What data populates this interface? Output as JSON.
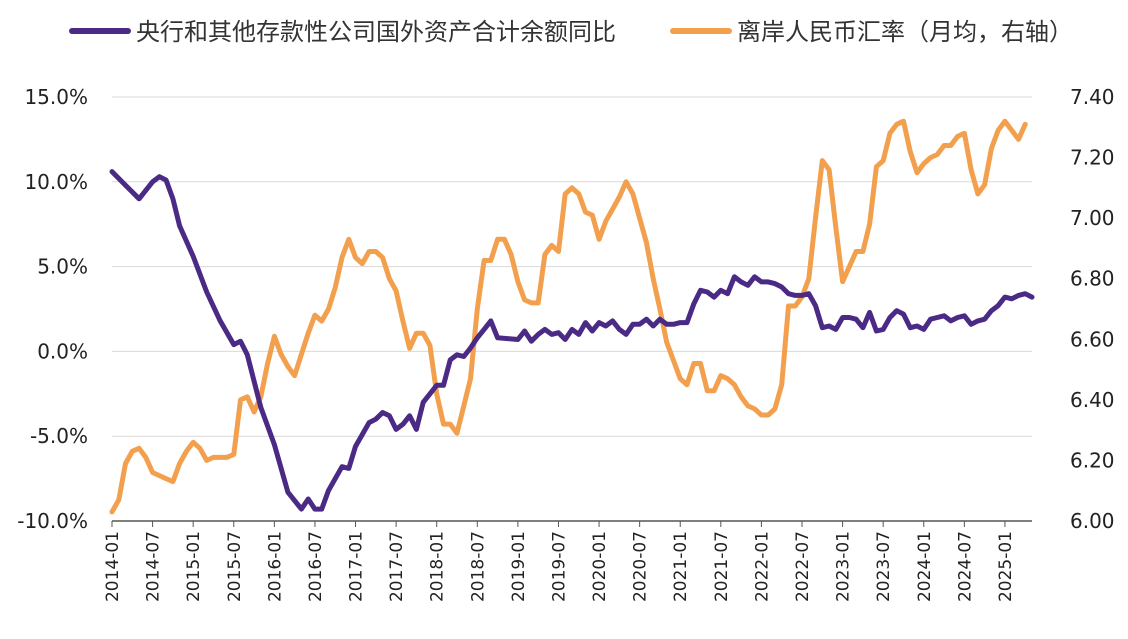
{
  "chart_data": {
    "type": "line",
    "dual_axis": true,
    "legend_position": "top",
    "grid": "horizontal",
    "colors": {
      "series1": "#4b2a86",
      "series2": "#f2a04e",
      "grid": "#d9d9d9",
      "axis": "#555555"
    },
    "y_left": {
      "ylim": [
        -10.0,
        15.0
      ],
      "ticks": [
        "-10.0%",
        "-5.0%",
        "0.0%",
        "5.0%",
        "10.0%",
        "15.0%"
      ]
    },
    "y_right": {
      "ylim": [
        6.0,
        7.4
      ],
      "ticks": [
        "6.00",
        "6.20",
        "6.40",
        "6.60",
        "6.80",
        "7.00",
        "7.20",
        "7.40"
      ]
    },
    "x_ticks": [
      "2014-01",
      "2014-07",
      "2015-01",
      "2015-07",
      "2016-01",
      "2016-07",
      "2017-01",
      "2017-07",
      "2018-01",
      "2018-07",
      "2019-01",
      "2019-07",
      "2020-01",
      "2020-07",
      "2021-01",
      "2021-07",
      "2022-01",
      "2022-07",
      "2023-01",
      "2023-07",
      "2024-01",
      "2024-07",
      "2025-01"
    ],
    "x_start": "2014-01",
    "x_end": "2025-05",
    "series": [
      {
        "name": "央行和其他存款性公司国外资产合计余额同比",
        "axis": "left",
        "points": [
          [
            "2014-01",
            10.6
          ],
          [
            "2014-03",
            9.8
          ],
          [
            "2014-05",
            9.0
          ],
          [
            "2014-07",
            10.0
          ],
          [
            "2014-08",
            10.3
          ],
          [
            "2014-09",
            10.1
          ],
          [
            "2014-10",
            9.0
          ],
          [
            "2014-11",
            7.4
          ],
          [
            "2015-01",
            5.6
          ],
          [
            "2015-03",
            3.5
          ],
          [
            "2015-05",
            1.8
          ],
          [
            "2015-07",
            0.4
          ],
          [
            "2015-08",
            0.6
          ],
          [
            "2015-09",
            -0.2
          ],
          [
            "2015-11",
            -3.3
          ],
          [
            "2016-01",
            -5.5
          ],
          [
            "2016-03",
            -8.3
          ],
          [
            "2016-05",
            -9.3
          ],
          [
            "2016-06",
            -8.7
          ],
          [
            "2016-07",
            -9.3
          ],
          [
            "2016-08",
            -9.3
          ],
          [
            "2016-09",
            -8.2
          ],
          [
            "2016-11",
            -6.8
          ],
          [
            "2016-12",
            -6.9
          ],
          [
            "2017-01",
            -5.6
          ],
          [
            "2017-03",
            -4.2
          ],
          [
            "2017-04",
            -4.0
          ],
          [
            "2017-05",
            -3.6
          ],
          [
            "2017-06",
            -3.8
          ],
          [
            "2017-07",
            -4.6
          ],
          [
            "2017-08",
            -4.3
          ],
          [
            "2017-09",
            -3.8
          ],
          [
            "2017-10",
            -4.6
          ],
          [
            "2017-11",
            -3.0
          ],
          [
            "2018-01",
            -2.0
          ],
          [
            "2018-02",
            -2.0
          ],
          [
            "2018-03",
            -0.5
          ],
          [
            "2018-04",
            -0.2
          ],
          [
            "2018-05",
            -0.3
          ],
          [
            "2018-06",
            0.2
          ],
          [
            "2018-07",
            0.8
          ],
          [
            "2018-08",
            1.3
          ],
          [
            "2018-09",
            1.8
          ],
          [
            "2018-10",
            0.8
          ],
          [
            "2019-01",
            0.7
          ],
          [
            "2019-02",
            1.2
          ],
          [
            "2019-03",
            0.6
          ],
          [
            "2019-04",
            1.0
          ],
          [
            "2019-05",
            1.3
          ],
          [
            "2019-06",
            1.0
          ],
          [
            "2019-07",
            1.1
          ],
          [
            "2019-08",
            0.7
          ],
          [
            "2019-09",
            1.3
          ],
          [
            "2019-10",
            1.0
          ],
          [
            "2019-11",
            1.7
          ],
          [
            "2019-12",
            1.2
          ],
          [
            "2020-01",
            1.7
          ],
          [
            "2020-02",
            1.5
          ],
          [
            "2020-03",
            1.8
          ],
          [
            "2020-04",
            1.3
          ],
          [
            "2020-05",
            1.0
          ],
          [
            "2020-06",
            1.6
          ],
          [
            "2020-07",
            1.6
          ],
          [
            "2020-08",
            1.9
          ],
          [
            "2020-09",
            1.5
          ],
          [
            "2020-10",
            1.9
          ],
          [
            "2020-11",
            1.6
          ],
          [
            "2020-12",
            1.6
          ],
          [
            "2021-01",
            1.7
          ],
          [
            "2021-02",
            1.7
          ],
          [
            "2021-03",
            2.8
          ],
          [
            "2021-04",
            3.6
          ],
          [
            "2021-05",
            3.5
          ],
          [
            "2021-06",
            3.2
          ],
          [
            "2021-07",
            3.6
          ],
          [
            "2021-08",
            3.4
          ],
          [
            "2021-09",
            4.4
          ],
          [
            "2021-10",
            4.1
          ],
          [
            "2021-11",
            3.9
          ],
          [
            "2021-12",
            4.4
          ],
          [
            "2022-01",
            4.1
          ],
          [
            "2022-02",
            4.1
          ],
          [
            "2022-03",
            4.0
          ],
          [
            "2022-04",
            3.8
          ],
          [
            "2022-05",
            3.4
          ],
          [
            "2022-06",
            3.3
          ],
          [
            "2022-07",
            3.3
          ],
          [
            "2022-08",
            3.4
          ],
          [
            "2022-09",
            2.7
          ],
          [
            "2022-10",
            1.4
          ],
          [
            "2022-11",
            1.5
          ],
          [
            "2022-12",
            1.3
          ],
          [
            "2023-01",
            2.0
          ],
          [
            "2023-02",
            2.0
          ],
          [
            "2023-03",
            1.9
          ],
          [
            "2023-04",
            1.4
          ],
          [
            "2023-05",
            2.3
          ],
          [
            "2023-06",
            1.2
          ],
          [
            "2023-07",
            1.3
          ],
          [
            "2023-08",
            2.0
          ],
          [
            "2023-09",
            2.4
          ],
          [
            "2023-10",
            2.2
          ],
          [
            "2023-11",
            1.4
          ],
          [
            "2023-12",
            1.5
          ],
          [
            "2024-01",
            1.3
          ],
          [
            "2024-02",
            1.9
          ],
          [
            "2024-03",
            2.0
          ],
          [
            "2024-04",
            2.1
          ],
          [
            "2024-05",
            1.8
          ],
          [
            "2024-06",
            2.0
          ],
          [
            "2024-07",
            2.1
          ],
          [
            "2024-08",
            1.6
          ],
          [
            "2024-09",
            1.8
          ],
          [
            "2024-10",
            1.9
          ],
          [
            "2024-11",
            2.4
          ],
          [
            "2024-12",
            2.7
          ],
          [
            "2025-01",
            3.2
          ],
          [
            "2025-02",
            3.1
          ],
          [
            "2025-03",
            3.3
          ],
          [
            "2025-04",
            3.4
          ],
          [
            "2025-05",
            3.2
          ]
        ]
      },
      {
        "name": "离岸人民币汇率（月均，右轴）",
        "axis": "right",
        "points": [
          [
            "2014-01",
            6.03
          ],
          [
            "2014-02",
            6.07
          ],
          [
            "2014-03",
            6.19
          ],
          [
            "2014-04",
            6.23
          ],
          [
            "2014-05",
            6.24
          ],
          [
            "2014-06",
            6.21
          ],
          [
            "2014-07",
            6.16
          ],
          [
            "2014-08",
            6.15
          ],
          [
            "2014-09",
            6.14
          ],
          [
            "2014-10",
            6.13
          ],
          [
            "2014-11",
            6.19
          ],
          [
            "2014-12",
            6.23
          ],
          [
            "2015-01",
            6.26
          ],
          [
            "2015-02",
            6.24
          ],
          [
            "2015-03",
            6.2
          ],
          [
            "2015-04",
            6.21
          ],
          [
            "2015-05",
            6.21
          ],
          [
            "2015-06",
            6.21
          ],
          [
            "2015-07",
            6.22
          ],
          [
            "2015-08",
            6.4
          ],
          [
            "2015-09",
            6.41
          ],
          [
            "2015-10",
            6.36
          ],
          [
            "2015-11",
            6.41
          ],
          [
            "2015-12",
            6.52
          ],
          [
            "2016-01",
            6.61
          ],
          [
            "2016-02",
            6.55
          ],
          [
            "2016-03",
            6.51
          ],
          [
            "2016-04",
            6.48
          ],
          [
            "2016-05",
            6.55
          ],
          [
            "2016-06",
            6.62
          ],
          [
            "2016-07",
            6.68
          ],
          [
            "2016-08",
            6.66
          ],
          [
            "2016-09",
            6.7
          ],
          [
            "2016-10",
            6.77
          ],
          [
            "2016-11",
            6.87
          ],
          [
            "2016-12",
            6.93
          ],
          [
            "2017-01",
            6.87
          ],
          [
            "2017-02",
            6.85
          ],
          [
            "2017-03",
            6.89
          ],
          [
            "2017-04",
            6.89
          ],
          [
            "2017-05",
            6.87
          ],
          [
            "2017-06",
            6.8
          ],
          [
            "2017-07",
            6.76
          ],
          [
            "2017-08",
            6.66
          ],
          [
            "2017-09",
            6.57
          ],
          [
            "2017-10",
            6.62
          ],
          [
            "2017-11",
            6.62
          ],
          [
            "2017-12",
            6.58
          ],
          [
            "2018-01",
            6.42
          ],
          [
            "2018-02",
            6.32
          ],
          [
            "2018-03",
            6.32
          ],
          [
            "2018-04",
            6.29
          ],
          [
            "2018-05",
            6.38
          ],
          [
            "2018-06",
            6.47
          ],
          [
            "2018-07",
            6.7
          ],
          [
            "2018-08",
            6.86
          ],
          [
            "2018-09",
            6.86
          ],
          [
            "2018-10",
            6.93
          ],
          [
            "2018-11",
            6.93
          ],
          [
            "2018-12",
            6.88
          ],
          [
            "2019-01",
            6.79
          ],
          [
            "2019-02",
            6.73
          ],
          [
            "2019-03",
            6.72
          ],
          [
            "2019-04",
            6.72
          ],
          [
            "2019-05",
            6.88
          ],
          [
            "2019-06",
            6.91
          ],
          [
            "2019-07",
            6.89
          ],
          [
            "2019-08",
            7.08
          ],
          [
            "2019-09",
            7.1
          ],
          [
            "2019-10",
            7.08
          ],
          [
            "2019-11",
            7.02
          ],
          [
            "2019-12",
            7.01
          ],
          [
            "2020-01",
            6.93
          ],
          [
            "2020-02",
            6.99
          ],
          [
            "2020-03",
            7.03
          ],
          [
            "2020-04",
            7.07
          ],
          [
            "2020-05",
            7.12
          ],
          [
            "2020-06",
            7.08
          ],
          [
            "2020-07",
            7.0
          ],
          [
            "2020-08",
            6.92
          ],
          [
            "2020-09",
            6.8
          ],
          [
            "2020-10",
            6.7
          ],
          [
            "2020-11",
            6.59
          ],
          [
            "2020-12",
            6.53
          ],
          [
            "2021-01",
            6.47
          ],
          [
            "2021-02",
            6.45
          ],
          [
            "2021-03",
            6.52
          ],
          [
            "2021-04",
            6.52
          ],
          [
            "2021-05",
            6.43
          ],
          [
            "2021-06",
            6.43
          ],
          [
            "2021-07",
            6.48
          ],
          [
            "2021-08",
            6.47
          ],
          [
            "2021-09",
            6.45
          ],
          [
            "2021-10",
            6.41
          ],
          [
            "2021-11",
            6.38
          ],
          [
            "2021-12",
            6.37
          ],
          [
            "2022-01",
            6.35
          ],
          [
            "2022-02",
            6.35
          ],
          [
            "2022-03",
            6.37
          ],
          [
            "2022-04",
            6.45
          ],
          [
            "2022-05",
            6.71
          ],
          [
            "2022-06",
            6.71
          ],
          [
            "2022-07",
            6.74
          ],
          [
            "2022-08",
            6.8
          ],
          [
            "2022-09",
            7.0
          ],
          [
            "2022-10",
            7.19
          ],
          [
            "2022-11",
            7.16
          ],
          [
            "2022-12",
            6.97
          ],
          [
            "2023-01",
            6.79
          ],
          [
            "2023-02",
            6.84
          ],
          [
            "2023-03",
            6.89
          ],
          [
            "2023-04",
            6.89
          ],
          [
            "2023-05",
            6.98
          ],
          [
            "2023-06",
            7.17
          ],
          [
            "2023-07",
            7.19
          ],
          [
            "2023-08",
            7.28
          ],
          [
            "2023-09",
            7.31
          ],
          [
            "2023-10",
            7.32
          ],
          [
            "2023-11",
            7.22
          ],
          [
            "2023-12",
            7.15
          ],
          [
            "2024-01",
            7.18
          ],
          [
            "2024-02",
            7.2
          ],
          [
            "2024-03",
            7.21
          ],
          [
            "2024-04",
            7.24
          ],
          [
            "2024-05",
            7.24
          ],
          [
            "2024-06",
            7.27
          ],
          [
            "2024-07",
            7.28
          ],
          [
            "2024-08",
            7.16
          ],
          [
            "2024-09",
            7.08
          ],
          [
            "2024-10",
            7.11
          ],
          [
            "2024-11",
            7.23
          ],
          [
            "2024-12",
            7.29
          ],
          [
            "2025-01",
            7.32
          ],
          [
            "2025-02",
            7.29
          ],
          [
            "2025-03",
            7.26
          ],
          [
            "2025-04",
            7.31
          ]
        ]
      }
    ]
  }
}
